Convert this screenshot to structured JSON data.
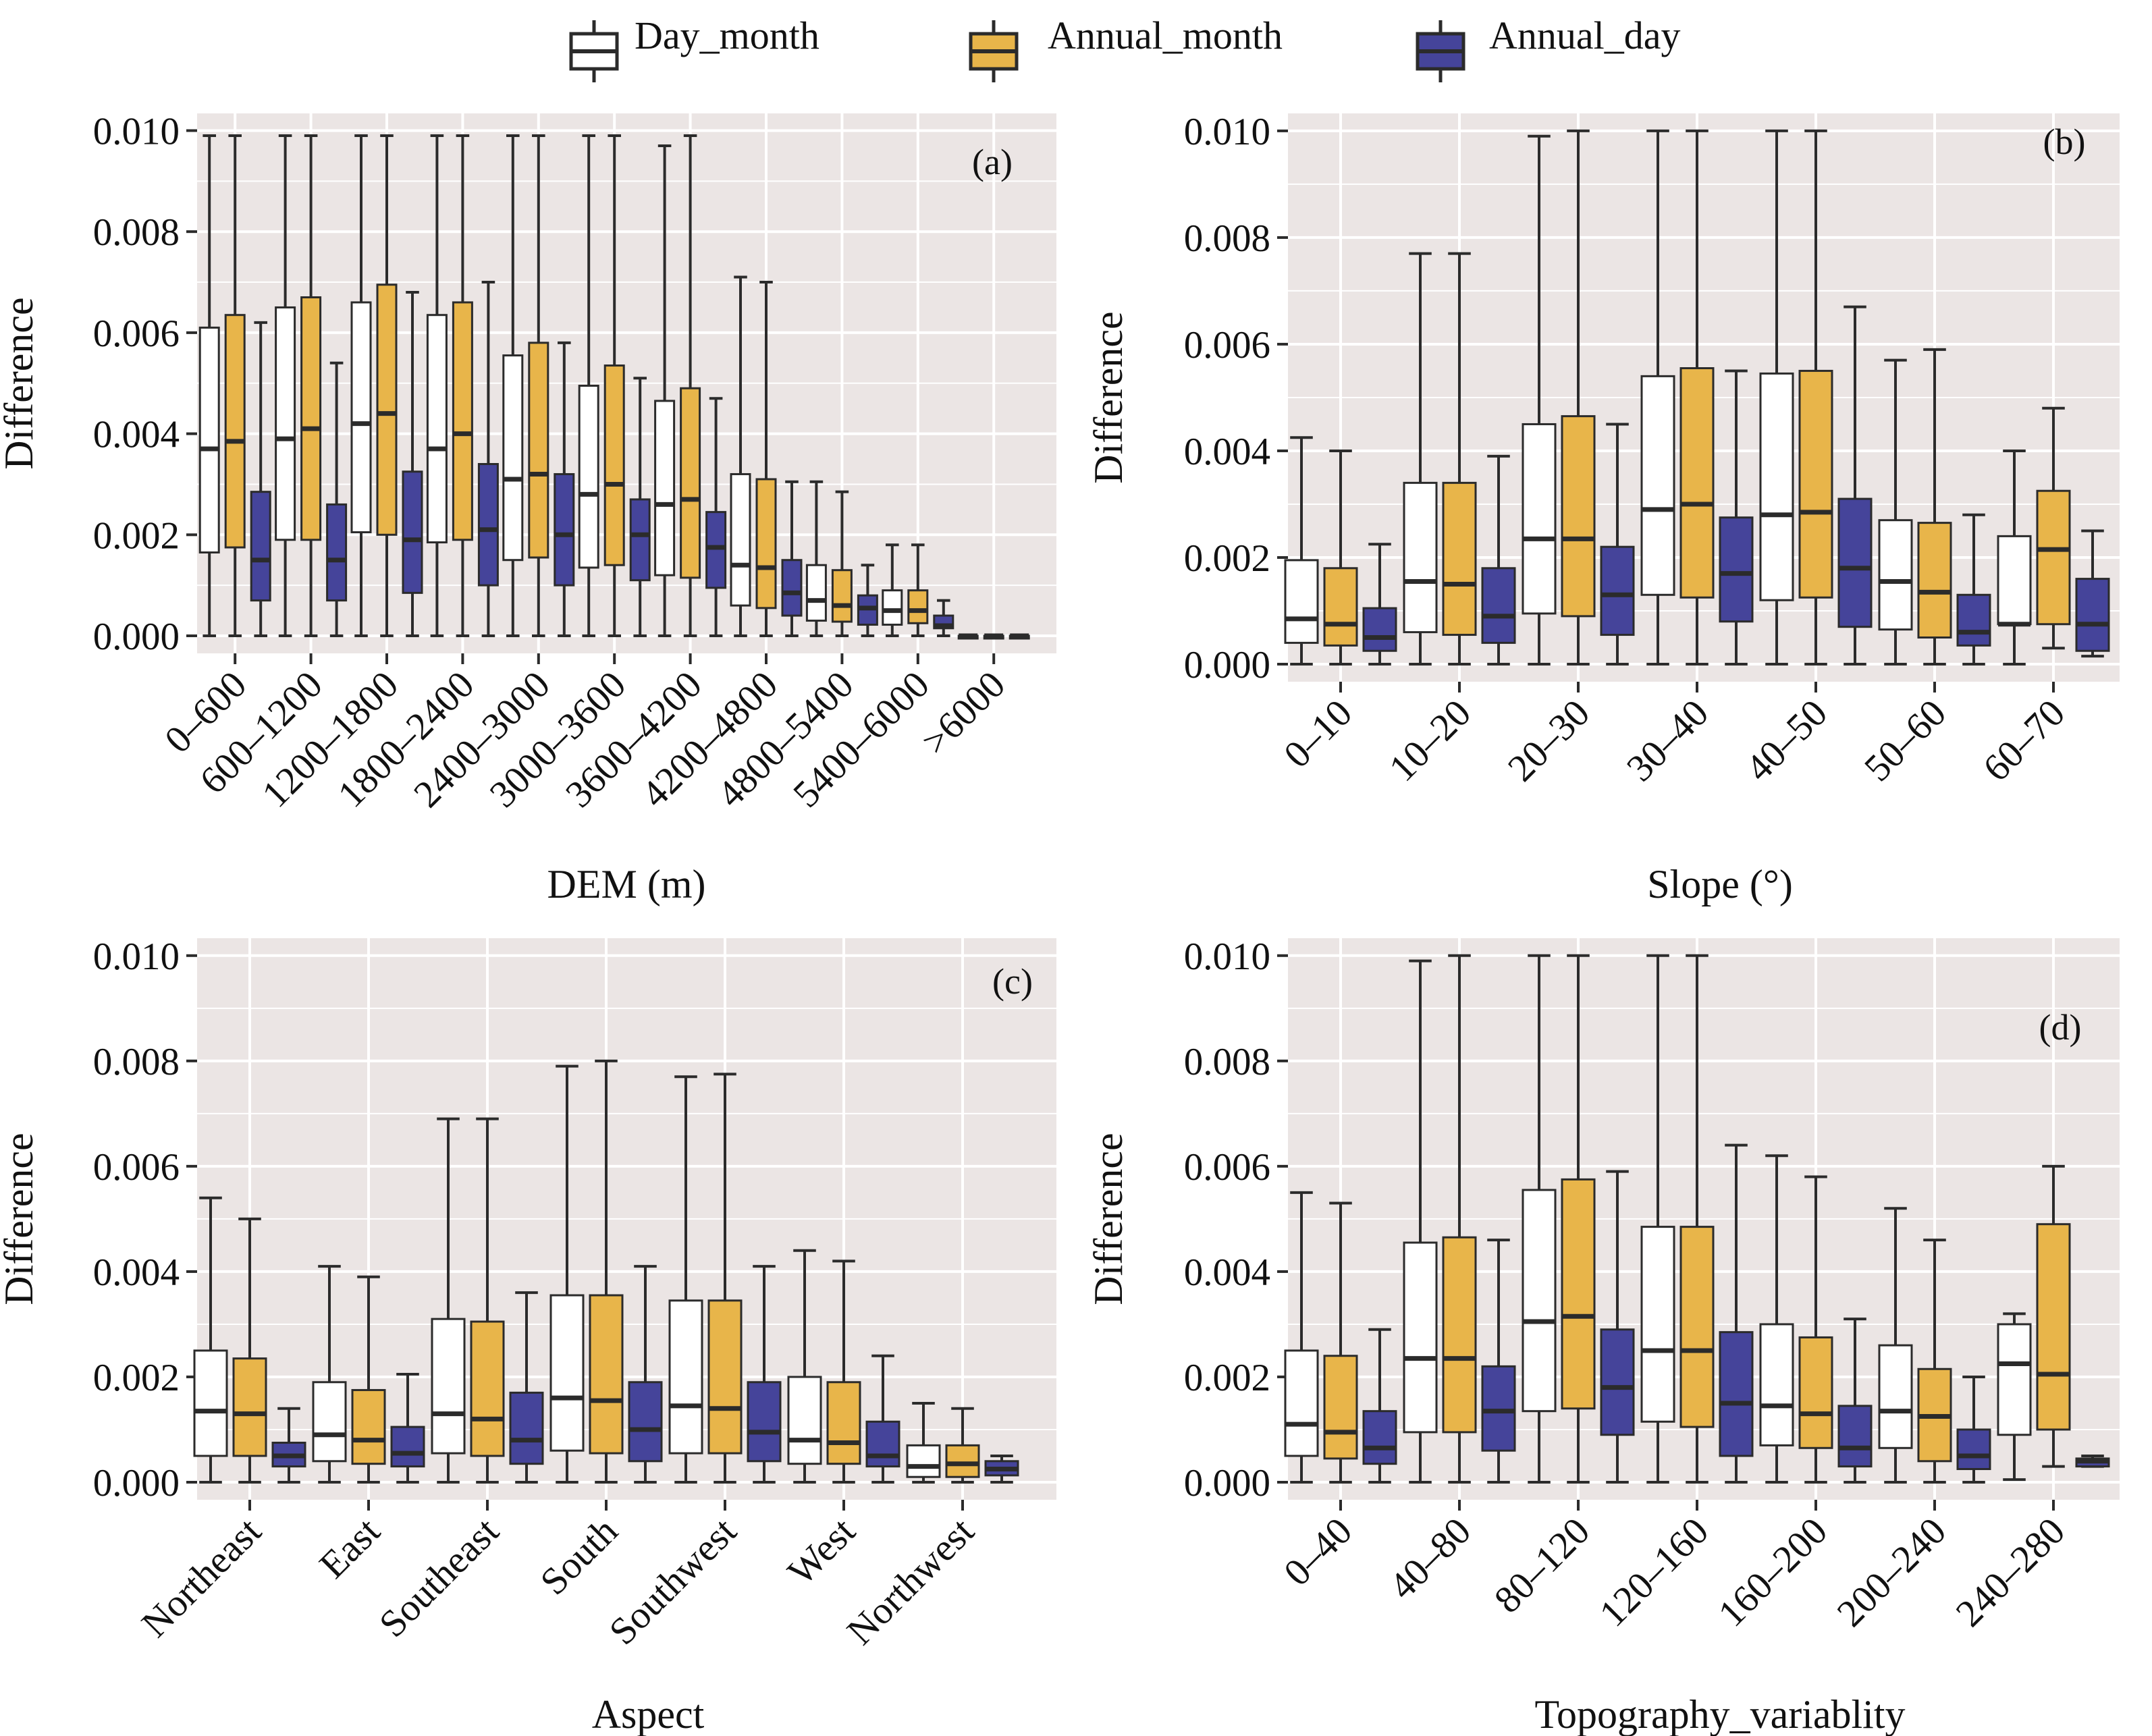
{
  "legend": {
    "items": [
      {
        "label": "Day_month",
        "color": "#ffffff"
      },
      {
        "label": "Annual_month",
        "color": "#e8b54a"
      },
      {
        "label": "Annual_day",
        "color": "#45449a"
      }
    ]
  },
  "colors": {
    "panel_bg": "#ebe5e4",
    "grid": "#ffffff",
    "line": "#2b2b2b"
  },
  "chart_data": [
    {
      "type": "box",
      "tag": "(a)",
      "xlabel": "DEM (m)",
      "ylabel": "Difference",
      "ylim": [
        0,
        0.0101
      ],
      "yticks": [
        "0.000",
        "0.002",
        "0.004",
        "0.006",
        "0.008",
        "0.010"
      ],
      "grid": true,
      "categories": [
        "0–600",
        "600–1200",
        "1200–1800",
        "1800–2400",
        "2400–3000",
        "3000–3600",
        "3600–4200",
        "4200–4800",
        "4800–5400",
        "5400–6000",
        ">6000"
      ],
      "series": [
        {
          "name": "Day_month",
          "boxes": [
            [
              0,
              0.00165,
              0.0037,
              0.0061,
              0.0099
            ],
            [
              0,
              0.0019,
              0.0039,
              0.0065,
              0.0099
            ],
            [
              0,
              0.00205,
              0.0042,
              0.0066,
              0.0099
            ],
            [
              0,
              0.00185,
              0.0037,
              0.00635,
              0.0099
            ],
            [
              0,
              0.0015,
              0.0031,
              0.00555,
              0.0099
            ],
            [
              0,
              0.00135,
              0.0028,
              0.00495,
              0.0099
            ],
            [
              0,
              0.0012,
              0.0026,
              0.00465,
              0.0097
            ],
            [
              0,
              0.0006,
              0.0014,
              0.0032,
              0.0071
            ],
            [
              0,
              0.0003,
              0.0007,
              0.0014,
              0.00305
            ],
            [
              0,
              0.00022,
              0.0005,
              0.0009,
              0.0018
            ],
            [
              0,
              0,
              0,
              0,
              0
            ]
          ]
        },
        {
          "name": "Annual_month",
          "boxes": [
            [
              0,
              0.00175,
              0.00385,
              0.00635,
              0.0099
            ],
            [
              0,
              0.0019,
              0.0041,
              0.0067,
              0.0099
            ],
            [
              0,
              0.002,
              0.0044,
              0.00695,
              0.0099
            ],
            [
              0,
              0.0019,
              0.004,
              0.0066,
              0.0099
            ],
            [
              0,
              0.00155,
              0.0032,
              0.0058,
              0.0099
            ],
            [
              0,
              0.0014,
              0.003,
              0.00535,
              0.0099
            ],
            [
              0,
              0.00115,
              0.0027,
              0.0049,
              0.0099
            ],
            [
              0,
              0.00055,
              0.00135,
              0.0031,
              0.007
            ],
            [
              0,
              0.00028,
              0.0006,
              0.0013,
              0.00285
            ],
            [
              0,
              0.00025,
              0.0005,
              0.0009,
              0.0018
            ],
            [
              0,
              0,
              0,
              0,
              0
            ]
          ]
        },
        {
          "name": "Annual_day",
          "boxes": [
            [
              0,
              0.0007,
              0.0015,
              0.00285,
              0.0062
            ],
            [
              0,
              0.0007,
              0.0015,
              0.0026,
              0.0054
            ],
            [
              0,
              0.00085,
              0.0019,
              0.00325,
              0.0068
            ],
            [
              0,
              0.001,
              0.0021,
              0.0034,
              0.007
            ],
            [
              0,
              0.001,
              0.002,
              0.0032,
              0.0058
            ],
            [
              0,
              0.0011,
              0.002,
              0.0027,
              0.0051
            ],
            [
              0,
              0.00095,
              0.00175,
              0.00245,
              0.0047
            ],
            [
              0,
              0.0004,
              0.00085,
              0.0015,
              0.00305
            ],
            [
              0,
              0.00022,
              0.00055,
              0.0008,
              0.0014
            ],
            [
              0,
              0.00015,
              0.0002,
              0.0004,
              0.0007
            ],
            [
              0,
              0,
              0,
              0,
              0
            ]
          ]
        }
      ]
    },
    {
      "type": "box",
      "tag": "(b)",
      "xlabel": "Slope (°)",
      "ylabel": "Difference",
      "ylim": [
        0,
        0.0101
      ],
      "yticks": [
        "0.000",
        "0.002",
        "0.004",
        "0.006",
        "0.008",
        "0.010"
      ],
      "grid": true,
      "categories": [
        "0–10",
        "10–20",
        "20–30",
        "30–40",
        "40–50",
        "50–60",
        "60–70"
      ],
      "series": [
        {
          "name": "Day_month",
          "boxes": [
            [
              0,
              0.0004,
              0.00085,
              0.00195,
              0.00425
            ],
            [
              0,
              0.0006,
              0.00155,
              0.0034,
              0.0077
            ],
            [
              0,
              0.00095,
              0.00235,
              0.0045,
              0.0099
            ],
            [
              0,
              0.0013,
              0.0029,
              0.0054,
              0.01
            ],
            [
              0,
              0.0012,
              0.0028,
              0.00545,
              0.01
            ],
            [
              0,
              0.00065,
              0.00155,
              0.0027,
              0.0057
            ],
            [
              0,
              0.00075,
              0.00075,
              0.0024,
              0.004
            ]
          ]
        },
        {
          "name": "Annual_month",
          "boxes": [
            [
              0,
              0.00035,
              0.00075,
              0.0018,
              0.004
            ],
            [
              0,
              0.00055,
              0.0015,
              0.0034,
              0.0077
            ],
            [
              0,
              0.0009,
              0.00235,
              0.00465,
              0.01
            ],
            [
              0,
              0.00125,
              0.003,
              0.00555,
              0.01
            ],
            [
              0,
              0.00125,
              0.00285,
              0.0055,
              0.01
            ],
            [
              0,
              0.0005,
              0.00135,
              0.00265,
              0.0059
            ],
            [
              0.0003,
              0.00075,
              0.00215,
              0.00325,
              0.0048
            ]
          ]
        },
        {
          "name": "Annual_day",
          "boxes": [
            [
              0,
              0.00025,
              0.0005,
              0.00105,
              0.00225
            ],
            [
              0,
              0.0004,
              0.0009,
              0.0018,
              0.0039
            ],
            [
              0,
              0.00055,
              0.0013,
              0.0022,
              0.0045
            ],
            [
              0,
              0.0008,
              0.0017,
              0.00275,
              0.0055
            ],
            [
              0,
              0.0007,
              0.0018,
              0.0031,
              0.0067
            ],
            [
              0,
              0.00035,
              0.0006,
              0.0013,
              0.0028
            ],
            [
              0.00015,
              0.00025,
              0.00075,
              0.0016,
              0.0025
            ]
          ]
        }
      ]
    },
    {
      "type": "box",
      "tag": "(c)",
      "xlabel": "Aspect",
      "ylabel": "Difference",
      "ylim": [
        0,
        0.0101
      ],
      "yticks": [
        "0.000",
        "0.002",
        "0.004",
        "0.006",
        "0.008",
        "0.010"
      ],
      "grid": true,
      "categories": [
        "Northeast",
        "East",
        "Southeast",
        "South",
        "Southwest",
        "West",
        "Northwest"
      ],
      "series": [
        {
          "name": "Day_month",
          "boxes": [
            [
              0,
              0.0005,
              0.00135,
              0.0025,
              0.0054
            ],
            [
              0,
              0.0004,
              0.0009,
              0.0019,
              0.0041
            ],
            [
              0,
              0.00055,
              0.0013,
              0.0031,
              0.0069
            ],
            [
              0,
              0.0006,
              0.0016,
              0.00355,
              0.0079
            ],
            [
              0,
              0.00055,
              0.00145,
              0.00345,
              0.0077
            ],
            [
              0,
              0.00035,
              0.0008,
              0.002,
              0.0044
            ],
            [
              0,
              0.0001,
              0.0003,
              0.0007,
              0.0015
            ]
          ]
        },
        {
          "name": "Annual_month",
          "boxes": [
            [
              0,
              0.0005,
              0.0013,
              0.00235,
              0.005
            ],
            [
              0,
              0.00035,
              0.0008,
              0.00175,
              0.0039
            ],
            [
              0,
              0.0005,
              0.0012,
              0.00305,
              0.0069
            ],
            [
              0,
              0.00055,
              0.00155,
              0.00355,
              0.008
            ],
            [
              0,
              0.00055,
              0.0014,
              0.00345,
              0.00775
            ],
            [
              0,
              0.00035,
              0.00075,
              0.0019,
              0.0042
            ],
            [
              0,
              0.0001,
              0.00035,
              0.0007,
              0.0014
            ]
          ]
        },
        {
          "name": "Annual_day",
          "boxes": [
            [
              0,
              0.0003,
              0.0005,
              0.00075,
              0.0014
            ],
            [
              0,
              0.0003,
              0.00055,
              0.00105,
              0.00205
            ],
            [
              0,
              0.00035,
              0.0008,
              0.0017,
              0.0036
            ],
            [
              0,
              0.0004,
              0.001,
              0.0019,
              0.0041
            ],
            [
              0,
              0.0004,
              0.00095,
              0.0019,
              0.0041
            ],
            [
              0,
              0.0003,
              0.0005,
              0.00115,
              0.0024
            ],
            [
              0,
              0.00013,
              0.00025,
              0.0004,
              0.0005
            ]
          ]
        }
      ]
    },
    {
      "type": "box",
      "tag": "(d)",
      "xlabel": "Topography_variablity",
      "ylabel": "Difference",
      "ylim": [
        0,
        0.0101
      ],
      "yticks": [
        "0.000",
        "0.002",
        "0.004",
        "0.006",
        "0.008",
        "0.010"
      ],
      "grid": true,
      "categories": [
        "0–40",
        "40–80",
        "80–120",
        "120–160",
        "160–200",
        "200–240",
        "240–280"
      ],
      "series": [
        {
          "name": "Day_month",
          "boxes": [
            [
              0,
              0.0005,
              0.0011,
              0.0025,
              0.0055
            ],
            [
              0,
              0.00095,
              0.00235,
              0.00455,
              0.0099
            ],
            [
              0,
              0.00135,
              0.00305,
              0.00555,
              0.01
            ],
            [
              0,
              0.00115,
              0.0025,
              0.00485,
              0.01
            ],
            [
              0,
              0.0007,
              0.00145,
              0.003,
              0.0062
            ],
            [
              0,
              0.00065,
              0.00135,
              0.0026,
              0.0052
            ],
            [
              5e-05,
              0.0009,
              0.00225,
              0.003,
              0.0032
            ]
          ]
        },
        {
          "name": "Annual_month",
          "boxes": [
            [
              0,
              0.00045,
              0.00095,
              0.0024,
              0.0053
            ],
            [
              0,
              0.00095,
              0.00235,
              0.00465,
              0.01
            ],
            [
              0,
              0.0014,
              0.00315,
              0.00575,
              0.01
            ],
            [
              0,
              0.00105,
              0.0025,
              0.00485,
              0.01
            ],
            [
              0,
              0.00065,
              0.0013,
              0.00275,
              0.0058
            ],
            [
              0,
              0.0004,
              0.00125,
              0.00215,
              0.0046
            ],
            [
              0.0003,
              0.001,
              0.00205,
              0.0049,
              0.006
            ]
          ]
        },
        {
          "name": "Annual_day",
          "boxes": [
            [
              0,
              0.00035,
              0.00065,
              0.00135,
              0.0029
            ],
            [
              0,
              0.0006,
              0.00135,
              0.0022,
              0.0046
            ],
            [
              0,
              0.0009,
              0.0018,
              0.0029,
              0.0059
            ],
            [
              0,
              0.0005,
              0.0015,
              0.00285,
              0.0064
            ],
            [
              0,
              0.0003,
              0.00065,
              0.00145,
              0.0031
            ],
            [
              0,
              0.00025,
              0.0005,
              0.001,
              0.002
            ],
            [
              0.0003,
              0.0003,
              0.0004,
              0.00045,
              0.0005
            ]
          ]
        }
      ]
    }
  ]
}
